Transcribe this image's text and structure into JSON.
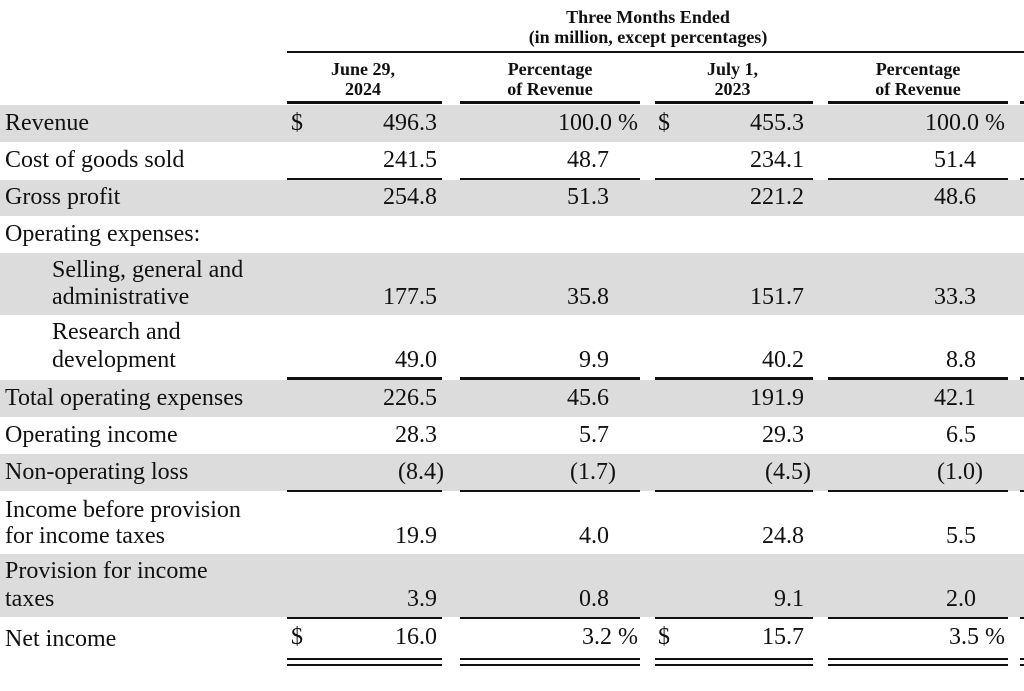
{
  "header": {
    "period_title": "Three Months Ended",
    "period_subtitle": "(in million, except percentages)",
    "columns": [
      {
        "line1": "June 29,",
        "line2": "2024"
      },
      {
        "line1": "Percentage",
        "line2": "of Revenue"
      },
      {
        "line1": "July 1,",
        "line2": "2023"
      },
      {
        "line1": "Percentage",
        "line2": "of Revenue"
      }
    ]
  },
  "rows": [
    {
      "label": "Revenue",
      "values": [
        "496.3",
        "100.0 %",
        "455.3",
        "100.0 %"
      ],
      "currency": [
        "$",
        "",
        "$",
        ""
      ]
    },
    {
      "label": "Cost of goods sold",
      "values": [
        "241.5",
        "48.7",
        "234.1",
        "51.4"
      ]
    },
    {
      "label": "Gross profit",
      "values": [
        "254.8",
        "51.3",
        "221.2",
        "48.6"
      ]
    },
    {
      "label": "Operating expenses:",
      "values": [
        "",
        "",
        "",
        ""
      ]
    },
    {
      "label_line1": "Selling, general and",
      "label_line2": "administrative",
      "values": [
        "177.5",
        "35.8",
        "151.7",
        "33.3"
      ]
    },
    {
      "label_line1": "Research and",
      "label_line2": "development",
      "values": [
        "49.0",
        "9.9",
        "40.2",
        "8.8"
      ]
    },
    {
      "label": "Total operating expenses",
      "values": [
        "226.5",
        "45.6",
        "191.9",
        "42.1"
      ]
    },
    {
      "label": "Operating income",
      "values": [
        "28.3",
        "5.7",
        "29.3",
        "6.5"
      ]
    },
    {
      "label": "Non-operating loss",
      "values": [
        "(8.4)",
        "(1.7)",
        "(4.5)",
        "(1.0)"
      ]
    },
    {
      "label_line1": "Income before provision",
      "label_line2": "for income taxes",
      "values": [
        "19.9",
        "4.0",
        "24.8",
        "5.5"
      ]
    },
    {
      "label_line1": "Provision for income",
      "label_line2": "taxes",
      "values": [
        "3.9",
        "0.8",
        "9.1",
        "2.0"
      ]
    },
    {
      "label": "Net income",
      "values": [
        "16.0",
        "3.2 %",
        "15.7",
        "3.5 %"
      ],
      "currency": [
        "$",
        "",
        "$",
        ""
      ]
    }
  ]
}
